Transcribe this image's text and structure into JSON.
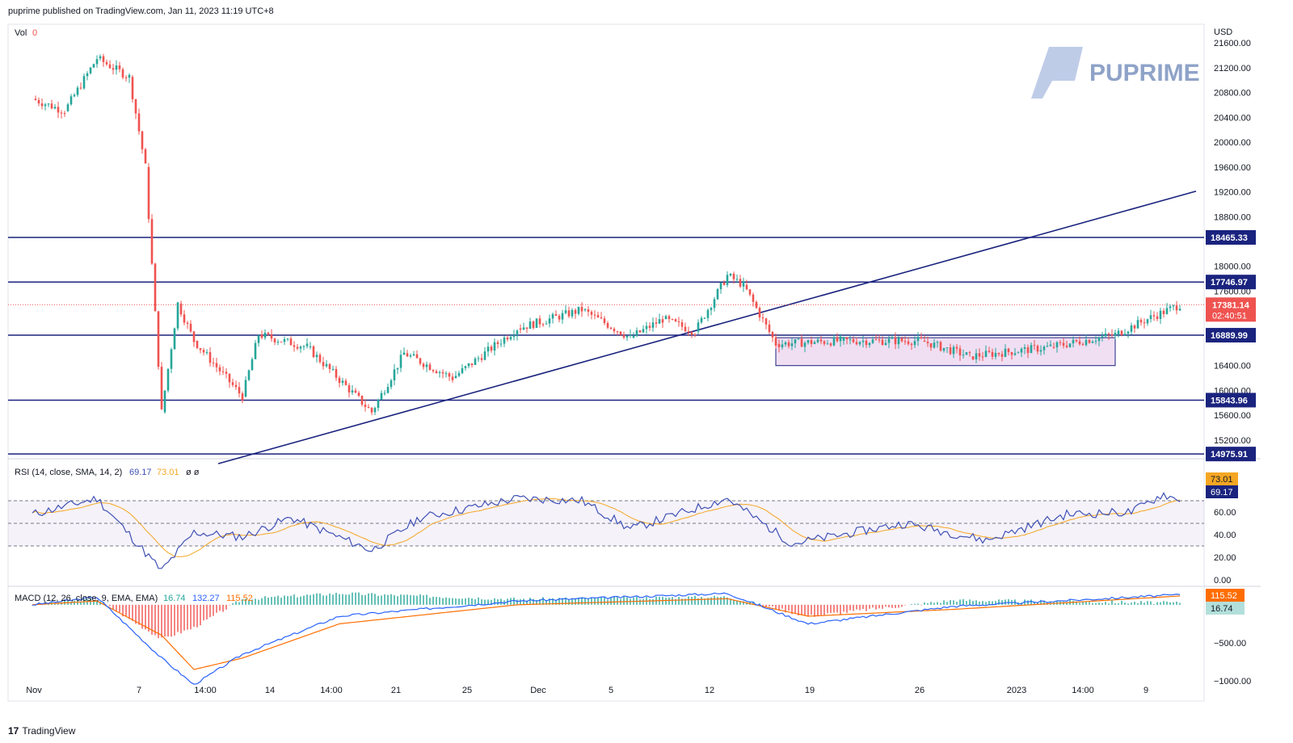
{
  "header": {
    "published": "puprime published on TradingView.com, Jan 11, 2023 11:19 UTC+8"
  },
  "footer": {
    "brand": "TradingView"
  },
  "watermark": {
    "text": "PUPRIME",
    "color": "#8fa3c8"
  },
  "colors": {
    "up": "#26a69a",
    "down": "#ef5350",
    "line": "#1a237e",
    "rsi": "#3f51b5",
    "rsi_ma": "#f5a623",
    "macd": "#2962ff",
    "signal": "#ff6d00",
    "rect": "#e1bee7"
  },
  "currency": "USD",
  "vol_label": {
    "name": "Vol",
    "value": "0"
  },
  "rsi_panel": {
    "title": "RSI (14, close, SMA, 14, 2)",
    "values": [
      "69.17",
      "73.01"
    ],
    "extra": "ø  ø",
    "ticks": [
      "60.00",
      "40.00",
      "20.00",
      "0.00"
    ],
    "badges": [
      "73.01",
      "69.17"
    ]
  },
  "macd_panel": {
    "title": "MACD (12, 26, close, 9, EMA, EMA)",
    "values": [
      "16.74",
      "132.27",
      "115.52"
    ],
    "ticks": [
      "−500.00",
      "−1000.00"
    ],
    "badges": [
      "115.52",
      "16.74"
    ]
  },
  "price_axis_ticks": [
    "21600.00",
    "21200.00",
    "20800.00",
    "20400.00",
    "20000.00",
    "19600.00",
    "19200.00",
    "18800.00",
    "18000.00",
    "17600.00",
    "16400.00",
    "16000.00",
    "15600.00",
    "15200.00"
  ],
  "level_badges": [
    "18465.33",
    "17746.97",
    "16889.99",
    "15843.96",
    "14975.91"
  ],
  "last_price": {
    "price": "17381.14",
    "countdown": "02:40:51"
  },
  "x_ticks": [
    "Nov",
    "7",
    "14:00",
    "14",
    "14:00",
    "21",
    "25",
    "Dec",
    "5",
    "12",
    "19",
    "26",
    "2023",
    "14:00",
    "9"
  ],
  "chart_data": {
    "type": "candlestick",
    "symbol_currency": "USD",
    "price_range": [
      14900,
      21900
    ],
    "horizontal_levels": [
      18465.33,
      17746.97,
      16889.99,
      15843.96,
      14975.91
    ],
    "trendline": {
      "from": {
        "date": "2022-11-14",
        "price": 14950
      },
      "to": {
        "date": "2023-01-11",
        "price": 18950
      }
    },
    "consolidation_box": {
      "from": "2022-12-17",
      "to": "2023-01-07",
      "high": 16850,
      "low": 16400
    },
    "last_price": 17381.14,
    "close_path": [
      {
        "date": "2022-11-01",
        "price": 20700
      },
      {
        "date": "2022-11-03",
        "price": 20500
      },
      {
        "date": "2022-11-05",
        "price": 21350
      },
      {
        "date": "2022-11-07",
        "price": 21050
      },
      {
        "date": "2022-11-08",
        "price": 19600
      },
      {
        "date": "2022-11-09",
        "price": 15650
      },
      {
        "date": "2022-11-10",
        "price": 17400
      },
      {
        "date": "2022-11-11",
        "price": 16800
      },
      {
        "date": "2022-11-14",
        "price": 15900
      },
      {
        "date": "2022-11-15",
        "price": 16900
      },
      {
        "date": "2022-11-18",
        "price": 16700
      },
      {
        "date": "2022-11-22",
        "price": 15650
      },
      {
        "date": "2022-11-24",
        "price": 16600
      },
      {
        "date": "2022-11-27",
        "price": 16200
      },
      {
        "date": "2022-12-01",
        "price": 17000
      },
      {
        "date": "2022-12-05",
        "price": 17300
      },
      {
        "date": "2022-12-08",
        "price": 16850
      },
      {
        "date": "2022-12-10",
        "price": 17150
      },
      {
        "date": "2022-12-12",
        "price": 16950
      },
      {
        "date": "2022-12-14",
        "price": 17850
      },
      {
        "date": "2022-12-15",
        "price": 17700
      },
      {
        "date": "2022-12-17",
        "price": 16750
      },
      {
        "date": "2022-12-21",
        "price": 16800
      },
      {
        "date": "2022-12-26",
        "price": 16800
      },
      {
        "date": "2022-12-29",
        "price": 16550
      },
      {
        "date": "2023-01-03",
        "price": 16700
      },
      {
        "date": "2023-01-07",
        "price": 16900
      },
      {
        "date": "2023-01-09",
        "price": 17150
      },
      {
        "date": "2023-01-11",
        "price": 17381
      }
    ],
    "rsi": {
      "levels": [
        70,
        50,
        30
      ],
      "ylim": [
        0,
        100
      ],
      "path": [
        {
          "date": "2022-11-01",
          "value": 58
        },
        {
          "date": "2022-11-05",
          "value": 72
        },
        {
          "date": "2022-11-09",
          "value": 8
        },
        {
          "date": "2022-11-11",
          "value": 42
        },
        {
          "date": "2022-11-14",
          "value": 38
        },
        {
          "date": "2022-11-17",
          "value": 55
        },
        {
          "date": "2022-11-22",
          "value": 26
        },
        {
          "date": "2022-11-25",
          "value": 55
        },
        {
          "date": "2022-12-01",
          "value": 72
        },
        {
          "date": "2022-12-05",
          "value": 70
        },
        {
          "date": "2022-12-08",
          "value": 45
        },
        {
          "date": "2022-12-14",
          "value": 72
        },
        {
          "date": "2022-12-18",
          "value": 32
        },
        {
          "date": "2022-12-25",
          "value": 50
        },
        {
          "date": "2022-12-30",
          "value": 35
        },
        {
          "date": "2023-01-04",
          "value": 58
        },
        {
          "date": "2023-01-08",
          "value": 60
        },
        {
          "date": "2023-01-10",
          "value": 76
        },
        {
          "date": "2023-01-11",
          "value": 69.17
        }
      ]
    },
    "macd": {
      "ylim": [
        -1200,
        200
      ],
      "macd": 132.27,
      "signal": 115.52,
      "histogram": 16.74,
      "path": [
        {
          "date": "2022-11-01",
          "macd": 0,
          "signal": 0
        },
        {
          "date": "2022-11-05",
          "macd": 100,
          "signal": 50
        },
        {
          "date": "2022-11-09",
          "macd": -700,
          "signal": -400
        },
        {
          "date": "2022-11-11",
          "macd": -1050,
          "signal": -850
        },
        {
          "date": "2022-11-14",
          "macd": -650,
          "signal": -700
        },
        {
          "date": "2022-11-20",
          "macd": -150,
          "signal": -250
        },
        {
          "date": "2022-12-01",
          "macd": 50,
          "signal": 0
        },
        {
          "date": "2022-12-14",
          "macd": 150,
          "signal": 80
        },
        {
          "date": "2022-12-19",
          "macd": -250,
          "signal": -150
        },
        {
          "date": "2022-12-28",
          "macd": -20,
          "signal": -60
        },
        {
          "date": "2023-01-11",
          "macd": 132.27,
          "signal": 115.52
        }
      ]
    }
  }
}
